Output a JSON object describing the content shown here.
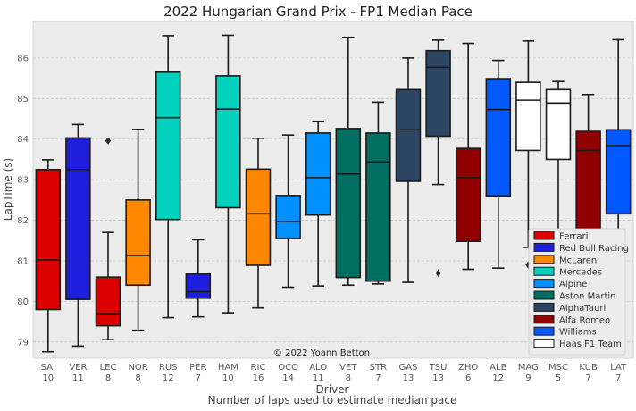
{
  "chart_data": {
    "type": "box",
    "title": "2022 Hungarian Grand Prix - FP1 Median Pace",
    "xlabel": "Driver",
    "xlabel2": "Number of laps used to estimate median pace",
    "ylabel": "LapTime (s)",
    "ylim": [
      78.6,
      86.9
    ],
    "yticks": [
      79,
      80,
      81,
      82,
      83,
      84,
      85,
      86
    ],
    "grid": true,
    "copyright": "© 2022 Yoann Betton",
    "categories": [
      "SAI",
      "VER",
      "LEC",
      "NOR",
      "RUS",
      "PER",
      "HAM",
      "RIC",
      "OCO",
      "ALO",
      "VET",
      "STR",
      "GAS",
      "TSU",
      "ZHO",
      "ALB",
      "MAG",
      "MSC",
      "KUB",
      "LAT"
    ],
    "laps": [
      "10",
      "11",
      "8",
      "8",
      "12",
      "7",
      "10",
      "16",
      "14",
      "11",
      "8",
      "7",
      "13",
      "13",
      "6",
      "12",
      "9",
      "5",
      "7",
      "7"
    ],
    "boxes": [
      {
        "driver": "SAI",
        "team": "Ferrari",
        "min": 78.76,
        "q1": 79.8,
        "median": 81.02,
        "q3": 83.25,
        "max": 83.49,
        "outliers": []
      },
      {
        "driver": "VER",
        "team": "Red Bull Racing",
        "min": 78.9,
        "q1": 80.05,
        "median": 83.25,
        "q3": 84.03,
        "max": 84.36,
        "outliers": []
      },
      {
        "driver": "LEC",
        "team": "Ferrari",
        "min": 79.06,
        "q1": 79.4,
        "median": 79.7,
        "q3": 80.6,
        "max": 81.7,
        "outliers": [
          83.96
        ]
      },
      {
        "driver": "NOR",
        "team": "McLaren",
        "min": 79.29,
        "q1": 80.4,
        "median": 81.13,
        "q3": 82.5,
        "max": 84.24,
        "outliers": []
      },
      {
        "driver": "RUS",
        "team": "Mercedes",
        "min": 79.6,
        "q1": 82.02,
        "median": 84.53,
        "q3": 85.65,
        "max": 86.55,
        "outliers": []
      },
      {
        "driver": "PER",
        "team": "Red Bull Racing",
        "min": 79.62,
        "q1": 80.08,
        "median": 80.24,
        "q3": 80.68,
        "max": 81.52,
        "outliers": []
      },
      {
        "driver": "HAM",
        "team": "Mercedes",
        "min": 79.72,
        "q1": 82.31,
        "median": 84.74,
        "q3": 85.56,
        "max": 86.56,
        "outliers": []
      },
      {
        "driver": "RIC",
        "team": "McLaren",
        "min": 79.84,
        "q1": 80.89,
        "median": 82.16,
        "q3": 83.26,
        "max": 84.02,
        "outliers": []
      },
      {
        "driver": "OCO",
        "team": "Alpine",
        "min": 80.35,
        "q1": 81.55,
        "median": 81.97,
        "q3": 82.61,
        "max": 84.1,
        "outliers": []
      },
      {
        "driver": "ALO",
        "team": "Alpine",
        "min": 80.38,
        "q1": 82.13,
        "median": 83.05,
        "q3": 84.15,
        "max": 84.44,
        "outliers": []
      },
      {
        "driver": "VET",
        "team": "Aston Martin",
        "min": 80.4,
        "q1": 80.59,
        "median": 83.14,
        "q3": 84.26,
        "max": 86.51,
        "outliers": []
      },
      {
        "driver": "STR",
        "team": "Aston Martin",
        "min": 80.43,
        "q1": 80.5,
        "median": 83.44,
        "q3": 84.15,
        "max": 84.91,
        "outliers": []
      },
      {
        "driver": "GAS",
        "team": "AlphaTauri",
        "min": 80.47,
        "q1": 82.96,
        "median": 84.23,
        "q3": 85.22,
        "max": 86.0,
        "outliers": []
      },
      {
        "driver": "TSU",
        "team": "AlphaTauri",
        "min": 82.88,
        "q1": 84.07,
        "median": 85.77,
        "q3": 86.18,
        "max": 86.44,
        "outliers": [
          80.7
        ]
      },
      {
        "driver": "ZHO",
        "team": "Alfa Romeo",
        "min": 80.79,
        "q1": 81.48,
        "median": 83.05,
        "q3": 83.77,
        "max": 86.36,
        "outliers": []
      },
      {
        "driver": "ALB",
        "team": "Williams",
        "min": 80.82,
        "q1": 82.6,
        "median": 84.73,
        "q3": 85.49,
        "max": 85.94,
        "outliers": []
      },
      {
        "driver": "MAG",
        "team": "Haas F1 Team",
        "min": 81.33,
        "q1": 83.72,
        "median": 84.96,
        "q3": 85.4,
        "max": 86.42,
        "outliers": [
          80.9
        ]
      },
      {
        "driver": "MSC",
        "team": "Haas F1 Team",
        "min": 81.4,
        "q1": 83.5,
        "median": 84.89,
        "q3": 85.22,
        "max": 85.42,
        "outliers": []
      },
      {
        "driver": "KUB",
        "team": "Alfa Romeo",
        "min": 81.2,
        "q1": 81.53,
        "median": 83.72,
        "q3": 84.19,
        "max": 85.1,
        "outliers": []
      },
      {
        "driver": "LAT",
        "team": "Williams",
        "min": 81.42,
        "q1": 82.16,
        "median": 83.84,
        "q3": 84.23,
        "max": 86.45,
        "outliers": []
      }
    ],
    "legend": [
      {
        "label": "Ferrari",
        "color": "#dc0000"
      },
      {
        "label": "Red Bull Racing",
        "color": "#1e1edc"
      },
      {
        "label": "McLaren",
        "color": "#ff8700"
      },
      {
        "label": "Mercedes",
        "color": "#00d2be"
      },
      {
        "label": "Alpine",
        "color": "#0090ff"
      },
      {
        "label": "Aston Martin",
        "color": "#006f62"
      },
      {
        "label": "AlphaTauri",
        "color": "#2b4562"
      },
      {
        "label": "Alfa Romeo",
        "color": "#900000"
      },
      {
        "label": "Williams",
        "color": "#005aff"
      },
      {
        "label": "Haas F1 Team",
        "color": "#ffffff"
      }
    ],
    "legend_position": "bottom-right"
  }
}
